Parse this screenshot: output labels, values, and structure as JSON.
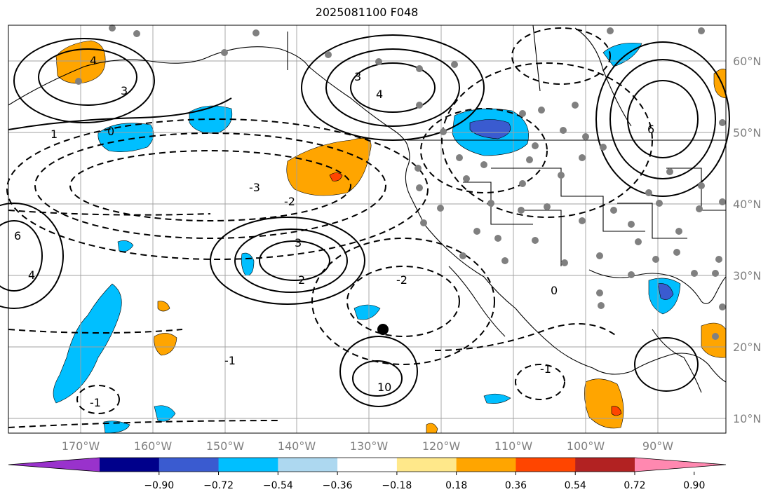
{
  "title": "2025081100 F048",
  "lat_labels": [
    "60°N",
    "50°N",
    "40°N",
    "30°N",
    "20°N",
    "10°N"
  ],
  "lon_labels": [
    "170°W",
    "160°W",
    "150°W",
    "140°W",
    "130°W",
    "120°W",
    "110°W",
    "100°W",
    "90°W"
  ],
  "colorbar": {
    "ticks": [
      "−0.90",
      "−0.72",
      "−0.54",
      "−0.36",
      "−0.18",
      "0.18",
      "0.36",
      "0.54",
      "0.72",
      "0.90"
    ],
    "colors": [
      "#9932cc",
      "#00008b",
      "#3a5bd0",
      "#00bfff",
      "#add8f0",
      "#ffffff",
      "#ffe88a",
      "#ffa500",
      "#ff4500",
      "#b22222",
      "#ff88b0"
    ]
  },
  "fill_colors": {
    "orange": "#ffa500",
    "red": "#ff4500",
    "cyan": "#00bfff",
    "blue": "#3a5bd0"
  },
  "contour_labels": [
    "1",
    "0",
    "4",
    "3",
    "2",
    "-2",
    "-3",
    "-1",
    "6"
  ],
  "marker": "storm-center"
}
